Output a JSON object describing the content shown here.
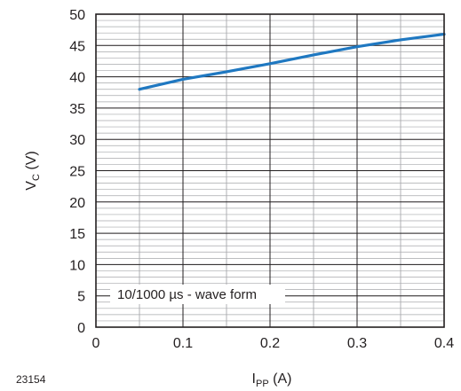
{
  "chart_data": {
    "type": "line",
    "x_axis": {
      "label_main": "I",
      "label_sub": "PP",
      "label_unit": " (A)",
      "range": [
        0,
        0.4
      ],
      "ticks": [
        0,
        0.1,
        0.2,
        0.3,
        0.4
      ],
      "tick_labels": [
        "0",
        "0.1",
        "0.2",
        "0.3",
        "0.4"
      ],
      "minor_step": 0.05
    },
    "y_axis": {
      "label_main": "V",
      "label_sub": "C",
      "label_unit": " (V)",
      "range": [
        0,
        50
      ],
      "ticks": [
        0,
        5,
        10,
        15,
        20,
        25,
        30,
        35,
        40,
        45,
        50
      ],
      "tick_labels": [
        "0",
        "5",
        "10",
        "15",
        "20",
        "25",
        "30",
        "35",
        "40",
        "45",
        "50"
      ],
      "minor_step": 1
    },
    "grid": true,
    "series": [
      {
        "x": [
          0.05,
          0.1,
          0.15,
          0.2,
          0.25,
          0.3,
          0.35,
          0.4
        ],
        "y": [
          38.0,
          39.6,
          40.8,
          42.1,
          43.5,
          44.8,
          45.9,
          46.8
        ],
        "color": "#1f78c1"
      }
    ],
    "annotation": "10/1000 µs - wave form",
    "figure_id": "23154"
  }
}
